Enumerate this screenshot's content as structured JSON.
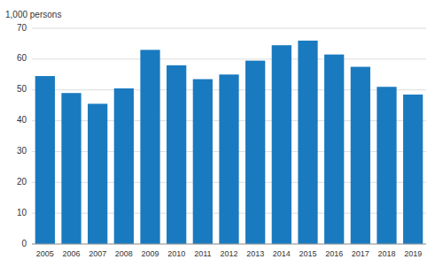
{
  "chart_data": {
    "type": "bar",
    "ylabel": "1,000 persons",
    "categories": [
      "2005",
      "2006",
      "2007",
      "2008",
      "2009",
      "2010",
      "2011",
      "2012",
      "2013",
      "2014",
      "2015",
      "2016",
      "2017",
      "2018",
      "2019"
    ],
    "values": [
      54.5,
      49.0,
      45.5,
      50.5,
      63.0,
      58.0,
      53.5,
      55.0,
      59.5,
      64.5,
      66.0,
      61.5,
      57.5,
      51.0,
      48.5
    ],
    "color": "#1a7abf",
    "ylim": [
      0,
      70
    ],
    "yticks": [
      0,
      10,
      20,
      30,
      40,
      50,
      60,
      70
    ],
    "grid": true
  }
}
